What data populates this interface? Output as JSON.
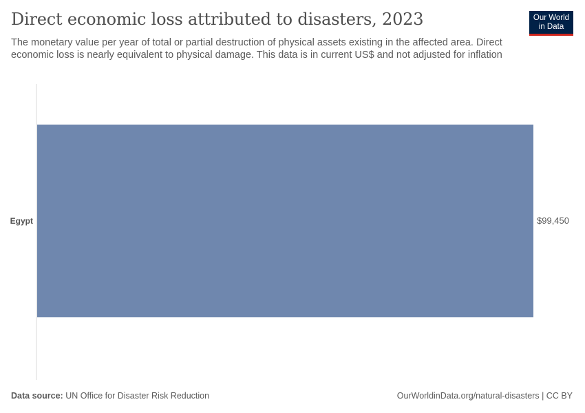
{
  "header": {
    "title": "Direct economic loss attributed to disasters, 2023",
    "subtitle": "The monetary value per year of total or partial destruction of physical assets existing in the affected area. Direct economic loss is nearly equivalent to physical damage. This data is in current US$ and not adjusted for inflation"
  },
  "logo": {
    "line1": "Our World",
    "line2": "in Data"
  },
  "footer": {
    "source_label": "Data source:",
    "source_text": "UN Office for Disaster Risk Reduction",
    "link_text": "OurWorldinData.org/natural-disasters",
    "license": "| CC BY"
  },
  "colors": {
    "bar": "#6f87ae",
    "axis": "#dadada",
    "logo_bg": "#002147",
    "logo_accent": "#ce261e"
  },
  "chart_data": {
    "type": "bar",
    "orientation": "horizontal",
    "categories": [
      "Egypt"
    ],
    "values": [
      99450
    ],
    "value_labels": [
      "$99,450"
    ],
    "xlim": [
      0,
      99450
    ]
  }
}
